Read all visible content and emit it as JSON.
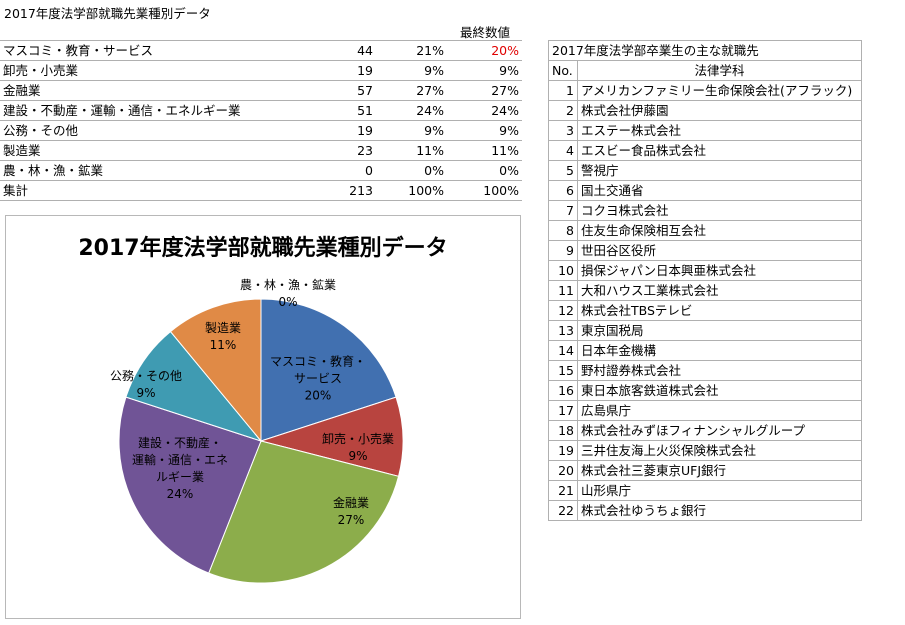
{
  "title": "2017年度法学部就職先業種別データ",
  "table": {
    "header": "最終数値",
    "rows": [
      [
        "マスコミ・教育・サービス",
        "44",
        "21%",
        "20%"
      ],
      [
        "卸売・小売業",
        "19",
        "9%",
        "9%"
      ],
      [
        "金融業",
        "57",
        "27%",
        "27%"
      ],
      [
        "建設・不動産・運輸・通信・エネルギー業",
        "51",
        "24%",
        "24%"
      ],
      [
        "公務・その他",
        "19",
        "9%",
        "9%"
      ],
      [
        "製造業",
        "23",
        "11%",
        "11%"
      ],
      [
        "農・林・漁・鉱業",
        "0",
        "0%",
        "0%"
      ],
      [
        "集計",
        "213",
        "100%",
        "100%"
      ]
    ]
  },
  "chart_data": {
    "type": "pie",
    "title": "2017年度法学部就職先業種別データ",
    "categories": [
      "マスコミ・教育・\nサービス",
      "卸売・小売業",
      "金融業",
      "建設・不動産・\n運輸・通信・エネ\nルギー業",
      "公務・その他",
      "製造業",
      "農・林・漁・鉱業"
    ],
    "values": [
      20,
      9,
      27,
      24,
      9,
      11,
      0
    ],
    "value_labels": [
      "20%",
      "9%",
      "27%",
      "24%",
      "9%",
      "11%",
      "0%"
    ],
    "colors": [
      "#4170b0",
      "#b8443f",
      "#8cad4b",
      "#705496",
      "#3f9bb2",
      "#e08a46",
      "#9ab7e0"
    ]
  },
  "list": {
    "title": "2017年度法学部卒業生の主な就職先",
    "header": [
      "No.",
      "法律学科"
    ],
    "rows": [
      [
        "1",
        "アメリカンファミリー生命保険会社(アフラック)"
      ],
      [
        "2",
        "株式会社伊藤園"
      ],
      [
        "3",
        "エステー株式会社"
      ],
      [
        "4",
        "エスビー食品株式会社"
      ],
      [
        "5",
        "警視庁"
      ],
      [
        "6",
        "国土交通省"
      ],
      [
        "7",
        "コクヨ株式会社"
      ],
      [
        "8",
        "住友生命保険相互会社"
      ],
      [
        "9",
        "世田谷区役所"
      ],
      [
        "10",
        "損保ジャパン日本興亜株式会社"
      ],
      [
        "11",
        "大和ハウス工業株式会社"
      ],
      [
        "12",
        "株式会社TBSテレビ"
      ],
      [
        "13",
        "東京国税局"
      ],
      [
        "14",
        "日本年金機構"
      ],
      [
        "15",
        "野村證券株式会社"
      ],
      [
        "16",
        "東日本旅客鉄道株式会社"
      ],
      [
        "17",
        "広島県庁"
      ],
      [
        "18",
        "株式会社みずほフィナンシャルグループ"
      ],
      [
        "19",
        "三井住友海上火災保険株式会社"
      ],
      [
        "20",
        "株式会社三菱東京UFJ銀行"
      ],
      [
        "21",
        "山形県庁"
      ],
      [
        "22",
        "株式会社ゆうちょ銀行"
      ]
    ]
  }
}
